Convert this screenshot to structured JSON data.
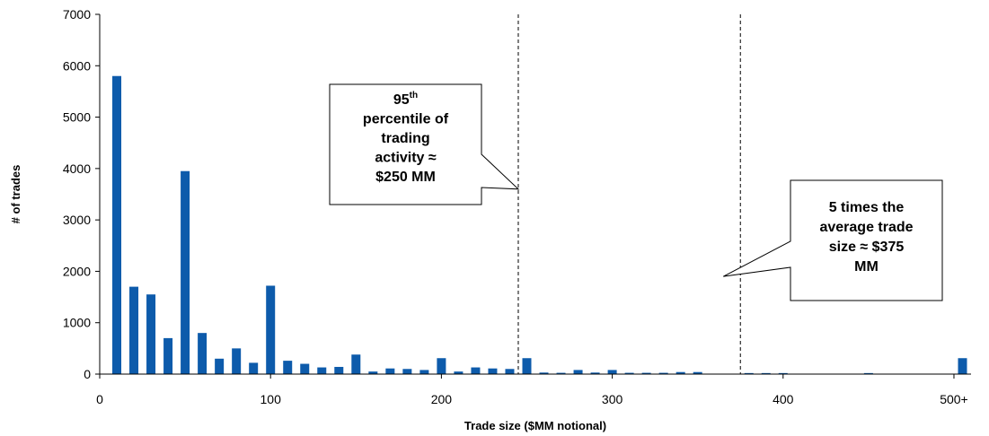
{
  "chart_data": {
    "type": "bar",
    "xlabel": "Trade size ($MM notional)",
    "ylabel": "# of trades",
    "ylim": [
      0,
      7000
    ],
    "xlim": [
      0,
      510
    ],
    "yticks": [
      0,
      1000,
      2000,
      3000,
      4000,
      5000,
      6000,
      7000
    ],
    "yticklabels": [
      "0",
      "1000",
      "2000",
      "3000",
      "4000",
      "5000",
      "6000",
      "7000"
    ],
    "xticks": [
      0,
      100,
      200,
      300,
      400,
      500
    ],
    "xticklabels": [
      "0",
      "100",
      "200",
      "300",
      "400",
      "500+"
    ],
    "grid": false,
    "bar_color": "#0d5bab",
    "bars": [
      {
        "x": 10,
        "value": 5800
      },
      {
        "x": 20,
        "value": 1700
      },
      {
        "x": 30,
        "value": 1550
      },
      {
        "x": 40,
        "value": 700
      },
      {
        "x": 50,
        "value": 3950
      },
      {
        "x": 60,
        "value": 800
      },
      {
        "x": 70,
        "value": 300
      },
      {
        "x": 80,
        "value": 500
      },
      {
        "x": 90,
        "value": 220
      },
      {
        "x": 100,
        "value": 1720
      },
      {
        "x": 110,
        "value": 260
      },
      {
        "x": 120,
        "value": 200
      },
      {
        "x": 130,
        "value": 130
      },
      {
        "x": 140,
        "value": 140
      },
      {
        "x": 150,
        "value": 380
      },
      {
        "x": 160,
        "value": 50
      },
      {
        "x": 170,
        "value": 110
      },
      {
        "x": 180,
        "value": 100
      },
      {
        "x": 190,
        "value": 80
      },
      {
        "x": 200,
        "value": 310
      },
      {
        "x": 210,
        "value": 50
      },
      {
        "x": 220,
        "value": 130
      },
      {
        "x": 230,
        "value": 110
      },
      {
        "x": 240,
        "value": 100
      },
      {
        "x": 250,
        "value": 310
      },
      {
        "x": 260,
        "value": 30
      },
      {
        "x": 270,
        "value": 25
      },
      {
        "x": 280,
        "value": 80
      },
      {
        "x": 290,
        "value": 30
      },
      {
        "x": 300,
        "value": 80
      },
      {
        "x": 310,
        "value": 25
      },
      {
        "x": 320,
        "value": 25
      },
      {
        "x": 330,
        "value": 25
      },
      {
        "x": 340,
        "value": 40
      },
      {
        "x": 350,
        "value": 40
      },
      {
        "x": 380,
        "value": 20
      },
      {
        "x": 390,
        "value": 20
      },
      {
        "x": 400,
        "value": 20
      },
      {
        "x": 450,
        "value": 20
      },
      {
        "x": 505,
        "value": 310
      }
    ],
    "reference_lines": [
      {
        "x": 245,
        "style": "dashed"
      },
      {
        "x": 375,
        "style": "dashed"
      }
    ],
    "annotations": [
      {
        "lines": [
          {
            "text": "95",
            "sup": "th"
          },
          {
            "text": "percentile of"
          },
          {
            "text": "trading"
          },
          {
            "text": "activity ≈"
          },
          {
            "text": "$250 MM"
          }
        ],
        "pointer_x": 245,
        "pointer_y": 3600
      },
      {
        "lines": [
          {
            "text": "5 times the"
          },
          {
            "text": "average trade"
          },
          {
            "text": "size ≈ $375"
          },
          {
            "text": "MM"
          }
        ],
        "pointer_x": 365,
        "pointer_y": 1900
      }
    ]
  }
}
